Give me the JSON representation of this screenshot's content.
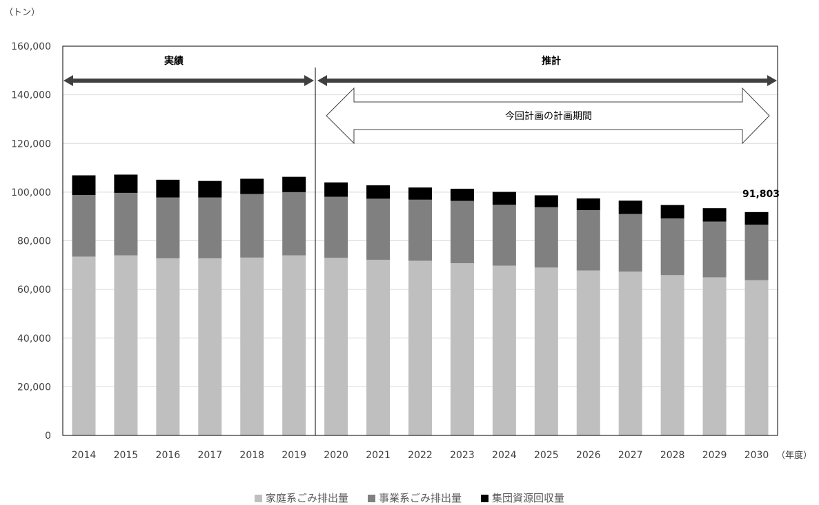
{
  "chart_data": {
    "type": "bar",
    "stacked": true,
    "y_unit": "（トン）",
    "x_unit": "（年度）",
    "ylim": [
      0,
      160000
    ],
    "y_ticks": [
      "0",
      "20,000",
      "40,000",
      "60,000",
      "80,000",
      "100,000",
      "120,000",
      "140,000",
      "160,000"
    ],
    "grid": true,
    "legend_position": "bottom",
    "categories": [
      "2014",
      "2015",
      "2016",
      "2017",
      "2018",
      "2019",
      "2020",
      "2021",
      "2022",
      "2023",
      "2024",
      "2025",
      "2026",
      "2027",
      "2028",
      "2029",
      "2030"
    ],
    "series": [
      {
        "name": "家庭系ごみ排出量",
        "color": "#bfbfbf",
        "values": [
          73500,
          74000,
          72800,
          72800,
          73100,
          74000,
          73000,
          72200,
          71800,
          70800,
          69800,
          69000,
          67800,
          67300,
          65900,
          65000,
          63800
        ]
      },
      {
        "name": "事業系ごみ排出量",
        "color": "#808080",
        "values": [
          25300,
          25700,
          25000,
          25000,
          26100,
          26000,
          25100,
          25100,
          25100,
          25600,
          25000,
          24800,
          24800,
          23700,
          23300,
          22900,
          22800
        ]
      },
      {
        "name": "集団資源回収量",
        "color": "#000000",
        "values": [
          8100,
          7500,
          7300,
          6800,
          6300,
          6300,
          5900,
          5500,
          5000,
          5000,
          5300,
          4900,
          4800,
          5500,
          5500,
          5500,
          5203
        ]
      }
    ],
    "annotations": {
      "actual_label": "実績",
      "forecast_label": "推計",
      "plan_period_label": "今回計画の計画期間",
      "last_total_label": "91,803"
    }
  }
}
